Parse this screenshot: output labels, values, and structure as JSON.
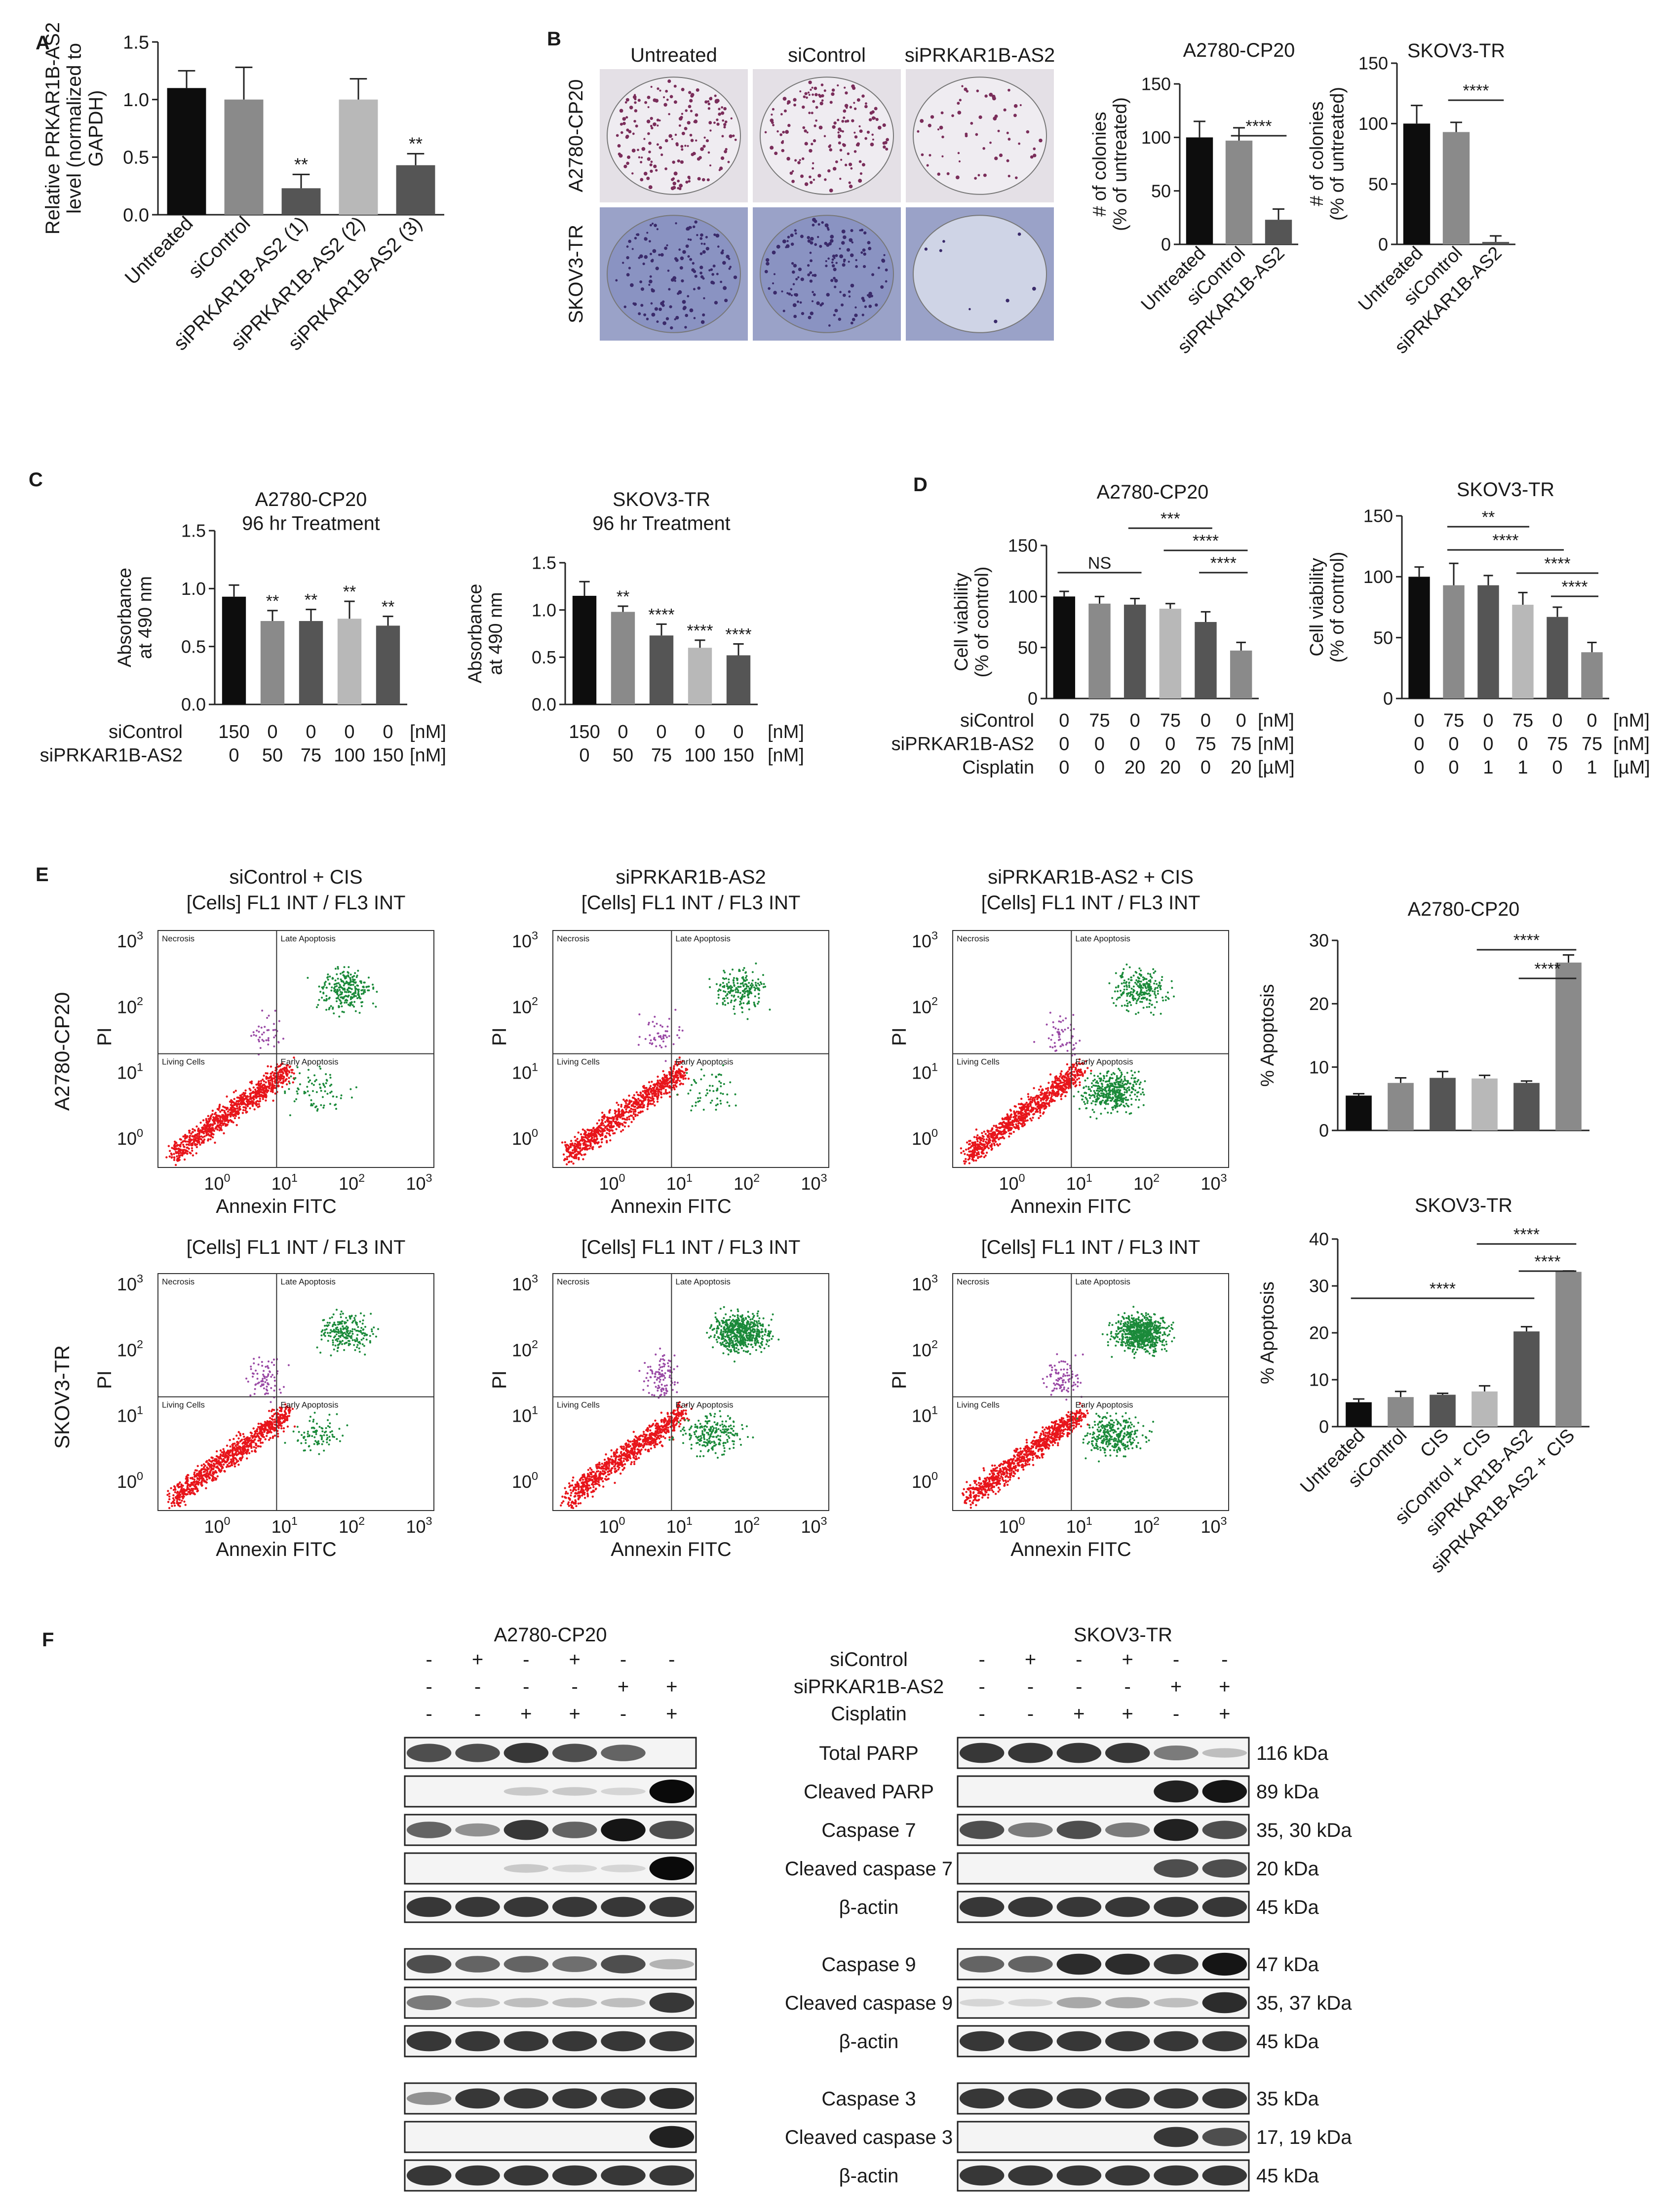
{
  "panels": {
    "A": "A",
    "B": "B",
    "C": "C",
    "D": "D",
    "E": "E",
    "F": "F"
  },
  "colors": {
    "black": "#0d0d0d",
    "dark": "#555555",
    "mid": "#8a8a8a",
    "light": "#b8b8b8",
    "pale": "#d4d4d4",
    "flow_red": "#e8151b",
    "flow_green": "#1b8a3a",
    "flow_purple": "#9a4aa5"
  },
  "panel_b": {
    "col_labels": [
      "Untreated",
      "siControl",
      "siPRKAR1B-AS2"
    ],
    "row_labels": [
      "A2780-CP20",
      "SKOV3-TR"
    ]
  },
  "panel_c": {
    "rows": [
      {
        "label": "siControl",
        "unit": "[nM]",
        "left": [
          "150",
          "0",
          "0",
          "0",
          "0"
        ],
        "right": [
          "150",
          "0",
          "0",
          "0",
          "0"
        ]
      },
      {
        "label": "siPRKAR1B-AS2",
        "unit": "[nM]",
        "left": [
          "0",
          "50",
          "75",
          "100",
          "150"
        ],
        "right": [
          "0",
          "50",
          "75",
          "100",
          "150"
        ]
      }
    ]
  },
  "panel_d": {
    "rows": [
      {
        "label": "siControl",
        "unit": "[nM]",
        "left": [
          "0",
          "75",
          "0",
          "75",
          "0",
          "0"
        ],
        "right": [
          "0",
          "75",
          "0",
          "75",
          "0",
          "0"
        ]
      },
      {
        "label": "siPRKAR1B-AS2",
        "unit": "[nM]",
        "left": [
          "0",
          "0",
          "0",
          "0",
          "75",
          "75"
        ],
        "right": [
          "0",
          "0",
          "0",
          "0",
          "75",
          "75"
        ]
      },
      {
        "label": "Cisplatin",
        "unit": "[µM]",
        "left": [
          "0",
          "0",
          "20",
          "20",
          "0",
          "20"
        ],
        "right": [
          "0",
          "0",
          "1",
          "1",
          "0",
          "1"
        ]
      }
    ]
  },
  "panel_e": {
    "col_titles": [
      "siControl + CIS",
      "siPRKAR1B-AS2",
      "siPRKAR1B-AS2 + CIS"
    ],
    "plot_title": "[Cells] FL1 INT / FL3 INT",
    "row_labels": [
      "A2780-CP20",
      "SKOV3-TR"
    ],
    "x_label": "Annexin FITC",
    "y_label": "PI",
    "quadrants": [
      "Necrosis",
      "Late Apoptosis",
      "Living Cells",
      "Early Apoptosis"
    ],
    "ticks": [
      "10⁰",
      "10¹",
      "10²",
      "10³"
    ]
  },
  "panel_f": {
    "cell_lines": [
      "A2780-CP20",
      "SKOV3-TR"
    ],
    "treatments": [
      {
        "label": "siControl",
        "a": [
          "-",
          "+",
          "-",
          "+",
          "-",
          "-"
        ],
        "s": [
          "-",
          "+",
          "-",
          "+",
          "-",
          "-"
        ]
      },
      {
        "label": "siPRKAR1B-AS2",
        "a": [
          "-",
          "-",
          "-",
          "-",
          "+",
          "+"
        ],
        "s": [
          "-",
          "-",
          "-",
          "-",
          "+",
          "+"
        ]
      },
      {
        "label": "Cisplatin",
        "a": [
          "-",
          "-",
          "+",
          "+",
          "-",
          "+"
        ],
        "s": [
          "-",
          "-",
          "+",
          "+",
          "-",
          "+"
        ]
      }
    ],
    "blots": [
      {
        "name": "Total PARP",
        "kda": "116 kDa",
        "a": [
          0.7,
          0.7,
          0.8,
          0.7,
          0.6,
          0.0
        ],
        "s": [
          0.8,
          0.8,
          0.8,
          0.8,
          0.5,
          0.2
        ]
      },
      {
        "name": "Cleaved PARP",
        "kda": "89 kDa",
        "a": [
          0,
          0,
          0.15,
          0.15,
          0.1,
          1.0
        ],
        "s": [
          0,
          0,
          0,
          0,
          0.9,
          0.95
        ]
      },
      {
        "name": "Caspase 7",
        "kda": "35, 30 kDa",
        "a": [
          0.6,
          0.4,
          0.8,
          0.6,
          0.95,
          0.7
        ],
        "s": [
          0.7,
          0.5,
          0.7,
          0.5,
          0.9,
          0.7
        ]
      },
      {
        "name": "Cleaved caspase 7",
        "kda": "20 kDa",
        "a": [
          0,
          0,
          0.15,
          0.1,
          0.1,
          1.0
        ],
        "s": [
          0,
          0,
          0,
          0,
          0.7,
          0.7
        ]
      },
      {
        "name": "β-actin",
        "kda": "45 kDa",
        "a": [
          0.8,
          0.8,
          0.8,
          0.8,
          0.8,
          0.8
        ],
        "s": [
          0.8,
          0.8,
          0.8,
          0.8,
          0.8,
          0.8
        ]
      },
      {
        "name": "Caspase 9",
        "kda": "47 kDa",
        "a": [
          0.7,
          0.6,
          0.6,
          0.55,
          0.7,
          0.25
        ],
        "s": [
          0.6,
          0.6,
          0.85,
          0.85,
          0.8,
          0.95
        ]
      },
      {
        "name": "Cleaved caspase 9",
        "kda": "35, 37 kDa",
        "a": [
          0.5,
          0.2,
          0.2,
          0.2,
          0.2,
          0.8
        ],
        "s": [
          0.1,
          0.1,
          0.3,
          0.3,
          0.2,
          0.85
        ]
      },
      {
        "name": "β-actin",
        "kda": "45 kDa",
        "a": [
          0.8,
          0.8,
          0.8,
          0.8,
          0.8,
          0.8
        ],
        "s": [
          0.8,
          0.8,
          0.8,
          0.8,
          0.8,
          0.8
        ]
      },
      {
        "name": "Caspase 3",
        "kda": "35 kDa",
        "a": [
          0.4,
          0.8,
          0.8,
          0.8,
          0.8,
          0.85
        ],
        "s": [
          0.8,
          0.8,
          0.8,
          0.8,
          0.8,
          0.8
        ]
      },
      {
        "name": "Cleaved caspase 3",
        "kda": "17, 19 kDa",
        "a": [
          0,
          0,
          0,
          0,
          0,
          0.9
        ],
        "s": [
          0,
          0,
          0,
          0,
          0.8,
          0.7
        ]
      },
      {
        "name": "β-actin",
        "kda": "45 kDa",
        "a": [
          0.8,
          0.8,
          0.8,
          0.8,
          0.8,
          0.8
        ],
        "s": [
          0.8,
          0.8,
          0.8,
          0.8,
          0.8,
          0.8
        ]
      }
    ]
  },
  "chart_data": [
    {
      "id": "A",
      "type": "bar",
      "categories": [
        "Untreated",
        "siControl",
        "siPRKAR1B-AS2 (1)",
        "siPRKAR1B-AS2 (2)",
        "siPRKAR1B-AS2 (3)"
      ],
      "values": [
        1.1,
        1.0,
        0.23,
        1.0,
        0.43
      ],
      "errors": [
        0.15,
        0.28,
        0.12,
        0.18,
        0.1
      ],
      "stars": [
        "",
        "",
        "**",
        "",
        "**"
      ],
      "ylabel": "Relative PRKAR1B-AS2 level (normalized to GAPDH)",
      "title": "",
      "xlabel": "",
      "ylim": [
        0,
        1.5
      ],
      "yticks": [
        "0.0",
        "0.5",
        "1.0",
        "1.5"
      ]
    },
    {
      "id": "B1",
      "type": "bar",
      "title": "A2780-CP20",
      "categories": [
        "Untreated",
        "siControl",
        "siPRKAR1B-AS2"
      ],
      "values": [
        100,
        97,
        23
      ],
      "errors": [
        15,
        12,
        10
      ],
      "ylabel": "# of colonies (% of untreated)",
      "xlabel": "",
      "ylim": [
        0,
        150
      ],
      "yticks": [
        "0",
        "50",
        "100",
        "150"
      ],
      "sig": [
        {
          "from": 1,
          "to": 2,
          "label": "****",
          "level": 1
        }
      ]
    },
    {
      "id": "B2",
      "type": "bar",
      "title": "SKOV3-TR",
      "categories": [
        "Untreated",
        "siControl",
        "siPRKAR1B-AS2"
      ],
      "values": [
        100,
        93,
        2
      ],
      "errors": [
        15,
        8,
        5
      ],
      "ylabel": "# of colonies (% of untreated)",
      "xlabel": "",
      "ylim": [
        0,
        150
      ],
      "yticks": [
        "0",
        "50",
        "100",
        "150"
      ],
      "sig": [
        {
          "from": 1,
          "to": 2,
          "label": "****",
          "level": 1
        }
      ]
    },
    {
      "id": "C1",
      "type": "bar",
      "title": "A2780-CP20",
      "subtitle": "96 hr Treatment",
      "values": [
        0.93,
        0.72,
        0.72,
        0.74,
        0.68
      ],
      "errors": [
        0.1,
        0.09,
        0.1,
        0.15,
        0.08
      ],
      "stars": [
        "",
        "**",
        "**",
        "**",
        "**"
      ],
      "ylabel": "Absorbance at 490 nm",
      "xlabel": "",
      "ylim": [
        0,
        1.5
      ],
      "yticks": [
        "0.0",
        "0.5",
        "1.0",
        "1.5"
      ]
    },
    {
      "id": "C2",
      "type": "bar",
      "title": "SKOV3-TR",
      "subtitle": "96 hr Treatment",
      "values": [
        1.15,
        0.98,
        0.73,
        0.6,
        0.52
      ],
      "errors": [
        0.15,
        0.06,
        0.12,
        0.08,
        0.12
      ],
      "stars": [
        "",
        "**",
        "****",
        "****",
        "****"
      ],
      "ylabel": "Absorbance at 490 nm",
      "xlabel": "",
      "ylim": [
        0,
        1.5
      ],
      "yticks": [
        "0.0",
        "0.5",
        "1.0",
        "1.5"
      ]
    },
    {
      "id": "D1",
      "type": "bar",
      "title": "A2780-CP20",
      "values": [
        100,
        93,
        92,
        88,
        75,
        47
      ],
      "errors": [
        5,
        7,
        6,
        5,
        10,
        8
      ],
      "ylabel": "Cell viability (% of control)",
      "xlabel": "",
      "ylim": [
        0,
        150
      ],
      "yticks": [
        "0",
        "50",
        "100",
        "150"
      ],
      "sig": [
        {
          "from": 0,
          "to": 2,
          "label": "NS",
          "level": 1
        },
        {
          "from": 2,
          "to": 4,
          "label": "***",
          "level": 3
        },
        {
          "from": 3,
          "to": 5,
          "label": "****",
          "level": 2
        },
        {
          "from": 4,
          "to": 5,
          "label": "****",
          "level": 1
        }
      ]
    },
    {
      "id": "D2",
      "type": "bar",
      "title": "SKOV3-TR",
      "values": [
        100,
        93,
        93,
        77,
        67,
        38
      ],
      "errors": [
        8,
        18,
        8,
        10,
        8,
        8
      ],
      "ylabel": "Cell viability (% of control)",
      "xlabel": "",
      "ylim": [
        0,
        150
      ],
      "yticks": [
        "0",
        "50",
        "100",
        "150"
      ],
      "sig": [
        {
          "from": 1,
          "to": 3,
          "label": "**",
          "level": 4
        },
        {
          "from": 1,
          "to": 4,
          "label": "****",
          "level": 3
        },
        {
          "from": 3,
          "to": 5,
          "label": "****",
          "level": 2
        },
        {
          "from": 4,
          "to": 5,
          "label": "****",
          "level": 1
        }
      ]
    },
    {
      "id": "E1",
      "type": "bar",
      "title": "A2780-CP20",
      "categories": [
        "Untreated",
        "siControl",
        "CIS",
        "siControl + CIS",
        "siPRKAR1B-AS2",
        "siPRKAR1B-AS2 + CIS"
      ],
      "values": [
        5.5,
        7.5,
        8.3,
        8.2,
        7.5,
        26.5
      ],
      "errors": [
        0.3,
        0.8,
        1.0,
        0.5,
        0.3,
        1.2
      ],
      "ylabel": "% Apoptosis",
      "xlabel": "",
      "ylim": [
        0,
        30
      ],
      "yticks": [
        "0",
        "10",
        "20",
        "30"
      ],
      "sig": [
        {
          "from": 4,
          "to": 5,
          "label": "****",
          "level": 1
        },
        {
          "from": 3,
          "to": 5,
          "label": "****",
          "level": 2
        }
      ]
    },
    {
      "id": "E2",
      "type": "bar",
      "title": "SKOV3-TR",
      "categories": [
        "Untreated",
        "siControl",
        "CIS",
        "siControl + CIS",
        "siPRKAR1B-AS2",
        "siPRKAR1B-AS2 + CIS"
      ],
      "values": [
        5.2,
        6.3,
        6.8,
        7.5,
        20.3,
        33
      ],
      "errors": [
        0.7,
        1.2,
        0.3,
        1.2,
        1.0,
        0.2
      ],
      "ylabel": "% Apoptosis",
      "xlabel": "",
      "ylim": [
        0,
        40
      ],
      "yticks": [
        "0",
        "10",
        "20",
        "30",
        "40"
      ],
      "sig": [
        {
          "from": 0,
          "to": 4,
          "label": "****",
          "level": 1
        },
        {
          "from": 4,
          "to": 5,
          "label": "****",
          "level": 2
        },
        {
          "from": 3,
          "to": 5,
          "label": "****",
          "level": 3
        }
      ]
    }
  ]
}
